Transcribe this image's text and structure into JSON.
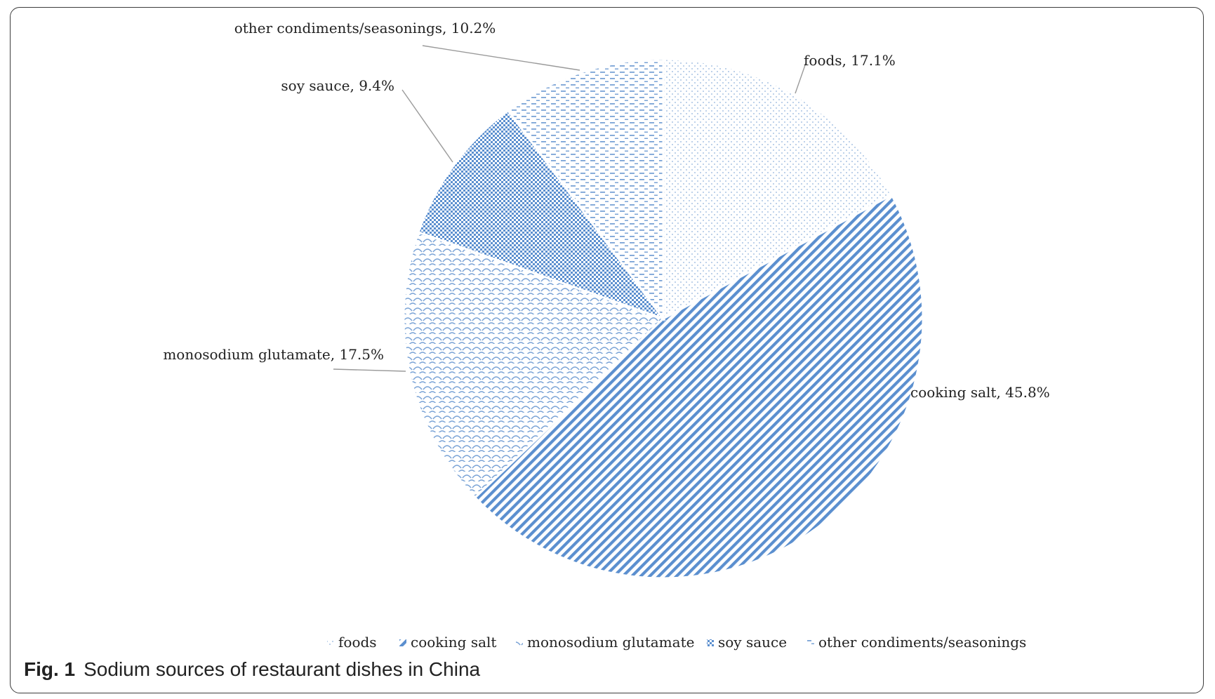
{
  "caption": {
    "label": "Fig. 1",
    "text": "Sodium sources of restaurant dishes in China"
  },
  "colors": {
    "accent": "#5b8fcf",
    "text": "#222222",
    "leader": "#9a9a9a"
  },
  "chart_data": {
    "type": "pie",
    "unit": "%",
    "slices": [
      {
        "label": "foods",
        "value": 17.1,
        "data_label": "foods, 17.1%"
      },
      {
        "label": "cooking salt",
        "value": 45.8,
        "data_label": "cooking salt, 45.8%"
      },
      {
        "label": "monosodium glutamate",
        "value": 17.5,
        "data_label": "monosodium glutamate, 17.5%"
      },
      {
        "label": "soy sauce",
        "value": 9.4,
        "data_label": "soy sauce, 9.4%"
      },
      {
        "label": "other condiments/seasonings",
        "value": 10.2,
        "data_label": "other condiments/seasonings, 10.2%"
      }
    ],
    "legend": [
      "foods",
      "cooking salt",
      "monosodium glutamate",
      "soy sauce",
      "other condiments/seasonings"
    ],
    "legend_position": "bottom"
  }
}
